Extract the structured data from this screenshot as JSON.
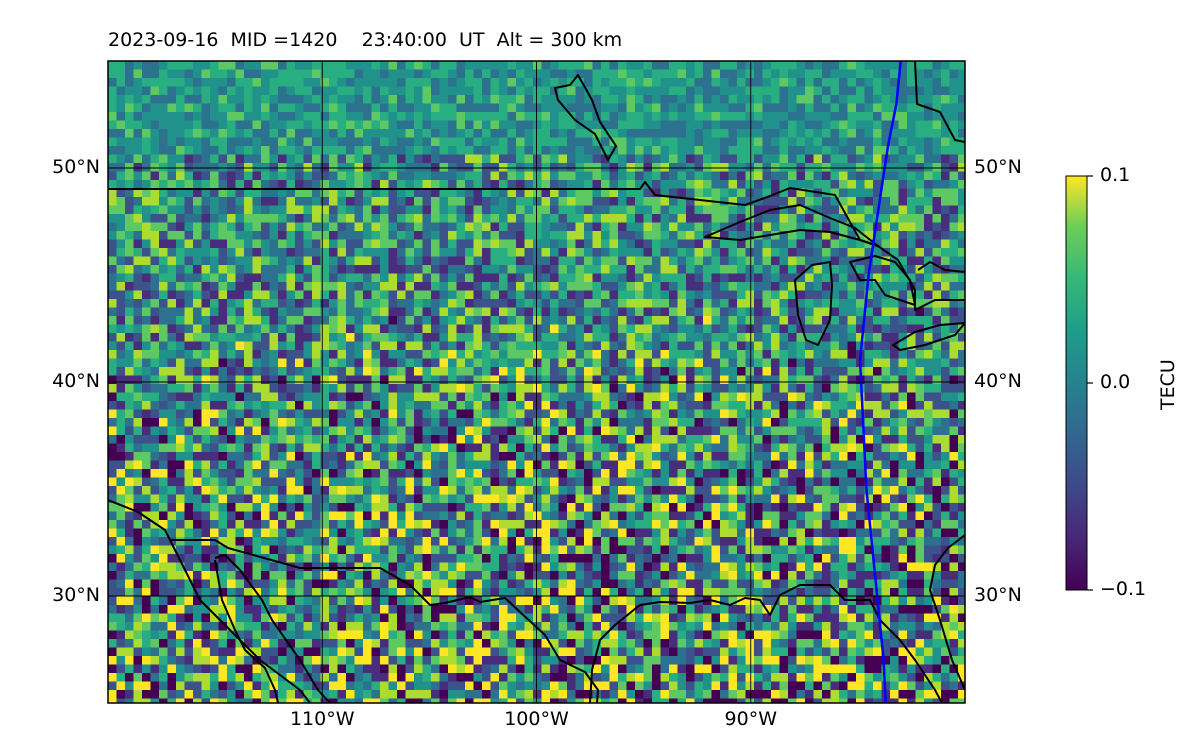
{
  "title": "2023-09-16  MID =1420    23:40:00  UT  Alt = 300 km",
  "map": {
    "lon_range": [
      -120,
      -80
    ],
    "lat_range": [
      25,
      55
    ],
    "gridlines": true,
    "lat_ticks": [
      {
        "value": 50,
        "label": "50°N"
      },
      {
        "value": 40,
        "label": "40°N"
      },
      {
        "value": 30,
        "label": "30°N"
      }
    ],
    "lon_ticks": [
      {
        "value": -110,
        "label": "110°W"
      },
      {
        "value": -100,
        "label": "100°W"
      },
      {
        "value": -90,
        "label": "90°W"
      }
    ],
    "field_colormap": "viridis",
    "colors": {
      "coastline": "#000000",
      "terminator_line": "#0000ff",
      "background_field": "#2a8a8a"
    },
    "terminator_line": [
      [
        -83.7,
        25
      ],
      [
        -83.8,
        27
      ],
      [
        -84.0,
        29
      ],
      [
        -84.2,
        31
      ],
      [
        -84.4,
        33
      ],
      [
        -84.6,
        35
      ],
      [
        -84.7,
        37
      ],
      [
        -84.8,
        39
      ],
      [
        -84.9,
        41
      ],
      [
        -84.7,
        43
      ],
      [
        -84.5,
        45
      ],
      [
        -84.2,
        47
      ],
      [
        -83.9,
        49
      ],
      [
        -83.6,
        51
      ],
      [
        -83.2,
        53
      ],
      [
        -83.0,
        55
      ]
    ]
  },
  "colorbar": {
    "title": "TECU",
    "min": -0.1,
    "max": 0.1,
    "colormap": "viridis",
    "ticks": [
      {
        "value": 0.1,
        "label": "0.1"
      },
      {
        "value": 0.0,
        "label": "0.0"
      },
      {
        "value": -0.1,
        "label": "−0.1"
      }
    ]
  }
}
